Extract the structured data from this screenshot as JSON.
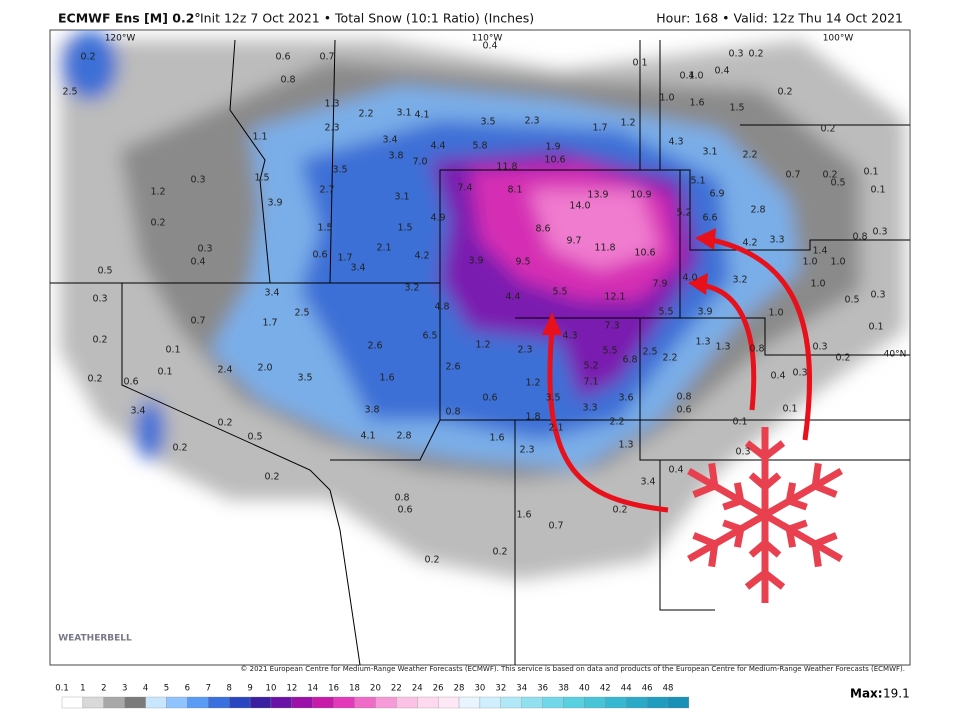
{
  "header": {
    "model": "ECMWF Ens [M] 0.2°",
    "details": "Init 12z 7 Oct 2021 • Total Snow (10:1 Ratio) (Inches)",
    "valid": "Hour: 168 • Valid: 12z Thu 14 Oct 2021"
  },
  "grid_labels": [
    "120°W",
    "110°W",
    "100°W",
    "40°N"
  ],
  "map_labels": [
    "2.5",
    "0.2",
    "0.6",
    "0.7",
    "0.8",
    "1.3",
    "2.3",
    "1.1",
    "2.2",
    "3.1",
    "3.4",
    "4.1",
    "3.8",
    "4.4",
    "7.0",
    "5.8",
    "3.5",
    "2.3",
    "1.9",
    "11.8",
    "10.6",
    "1.7",
    "1.2",
    "4.3",
    "3.1",
    "2.2",
    "0.1",
    "0.4",
    "1.0",
    "1.6",
    "1.5",
    "0.2",
    "0.7",
    "0.5",
    "0.1",
    "0.1",
    "0.2",
    "5.1",
    "6.9",
    "5.2",
    "6.6",
    "2.8",
    "4.2",
    "3.3",
    "1.4",
    "1.0",
    "0.8",
    "0.3",
    "7.4",
    "8.1",
    "13.9",
    "10.9",
    "14.0",
    "8.6",
    "9.7",
    "11.8",
    "10.6",
    "9.5",
    "3.9",
    "4.9",
    "4.2",
    "1.5",
    "2.1",
    "1.7",
    "3.4",
    "0.6",
    "1.5",
    "3.1",
    "2.7",
    "3.9",
    "3.5",
    "1.5",
    "1.2",
    "0.3",
    "0.2",
    "0.3",
    "0.4",
    "0.5",
    "0.3",
    "3.4",
    "2.5",
    "1.7",
    "0.7",
    "0.2",
    "0.1",
    "0.1",
    "0.2",
    "0.6",
    "3.4",
    "0.2",
    "2.4",
    "2.0",
    "3.5",
    "0.2",
    "0.5",
    "3.2",
    "4.8",
    "4.4",
    "5.5",
    "12.1",
    "7.9",
    "4.0",
    "3.2",
    "5.5",
    "3.9",
    "6.5",
    "2.6",
    "1.2",
    "2.3",
    "4.3",
    "7.3",
    "5.5",
    "6.8",
    "5.2",
    "7.1",
    "2.5",
    "2.2",
    "1.3",
    "1.3",
    "0.8",
    "0.3",
    "0.2",
    "0.1",
    "0.5",
    "0.3",
    "1.0",
    "1.0",
    "1.0",
    "1.6",
    "2.6",
    "3.8",
    "0.8",
    "0.6",
    "1.2",
    "3.5",
    "3.3",
    "3.6",
    "0.8",
    "0.6",
    "1.8",
    "2.2",
    "1.3",
    "0.4",
    "0.3",
    "0.1",
    "0.1",
    "0.3",
    "4.1",
    "2.8",
    "1.6",
    "2.3",
    "2.1",
    "0.4",
    "3.4",
    "0.2",
    "0.8",
    "0.6",
    "1.6",
    "0.7",
    "0.2",
    "0.2",
    "0.2",
    "0.4",
    "0.3",
    "0.2",
    "0.4",
    "0.2",
    "1.0"
  ],
  "copyright": "© 2021 European Centre for Medium-Range Weather Forecasts (ECMWF). This service is based on data and products of the European Centre for Medium-Range Weather Forecasts (ECMWF).",
  "logo": "WEATHERBELL",
  "colorbar": {
    "labels": [
      "0.1",
      "1",
      "2",
      "3",
      "4",
      "5",
      "6",
      "7",
      "8",
      "9",
      "10",
      "12",
      "14",
      "16",
      "18",
      "20",
      "22",
      "24",
      "26",
      "28",
      "30",
      "32",
      "34",
      "36",
      "38",
      "40",
      "42",
      "44",
      "46",
      "48"
    ],
    "colors": [
      "#ffffff",
      "#d9d9d9",
      "#a8a8a8",
      "#7a7a7a",
      "#c9e6ff",
      "#8fc4ff",
      "#5a9cf5",
      "#3a6fe0",
      "#2a45c0",
      "#3a1fa0",
      "#6a12a8",
      "#9a10a8",
      "#c81aa8",
      "#e23ab8",
      "#f06ac8",
      "#f79ad8",
      "#fbc2e6",
      "#ffd9f0",
      "#ffe8f5",
      "#e8f4ff",
      "#cfefff",
      "#b0e8f8",
      "#90e0f0",
      "#70d8e8",
      "#58d0e0",
      "#48c4d8",
      "#38b8d0",
      "#2aaac8",
      "#209cc0",
      "#1890b8"
    ]
  },
  "max": {
    "label": "Max:",
    "value": "19.1"
  }
}
